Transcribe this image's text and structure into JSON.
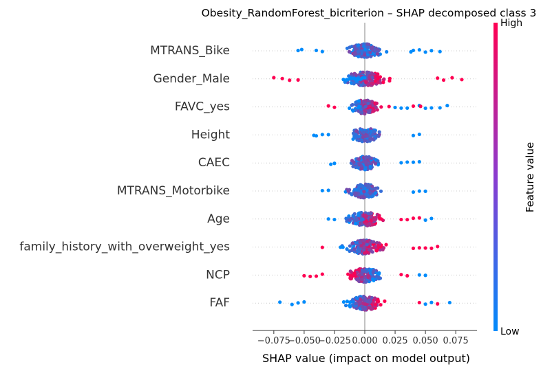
{
  "chart_data": {
    "type": "scatter",
    "title": "Obesity_RandomForest_bicriterion – SHAP decomposed class 3",
    "xlabel": "SHAP value (impact on model output)",
    "ylabel": "",
    "xlim": [
      -0.0925,
      0.0925
    ],
    "x_ticks": [
      -0.075,
      -0.05,
      -0.025,
      0.0,
      0.025,
      0.05,
      0.075
    ],
    "x_tick_labels": [
      "−0.075",
      "−0.050",
      "−0.025",
      "0.000",
      "0.025",
      "0.050",
      "0.075"
    ],
    "features": [
      "MTRANS_Bike",
      "Gender_Male",
      "FAVC_yes",
      "Height",
      "CAEC",
      "MTRANS_Motorbike",
      "Age",
      "family_history_with_overweight_yes",
      "NCP",
      "FAF"
    ],
    "colorbar": {
      "label": "Feature value",
      "high": "High",
      "low": "Low",
      "high_color": "#ff0052",
      "low_color": "#008bfb"
    },
    "series": [
      {
        "feature": "MTRANS_Bike",
        "spread": 0.048,
        "low_points": [
          [
            -0.055,
            0
          ],
          [
            -0.052,
            0
          ],
          [
            -0.04,
            0
          ],
          [
            -0.035,
            0
          ],
          [
            0.038,
            0
          ],
          [
            0.04,
            0
          ],
          [
            0.045,
            0
          ],
          [
            0.05,
            0
          ],
          [
            0.055,
            0
          ],
          [
            0.062,
            0
          ]
        ],
        "high_points": []
      },
      {
        "feature": "Gender_Male",
        "spread": 0.055,
        "low_points": [
          [
            -0.012,
            0
          ],
          [
            -0.008,
            0
          ],
          [
            -0.005,
            0
          ],
          [
            -0.002,
            0
          ],
          [
            0.0,
            0
          ],
          [
            -0.01,
            0
          ],
          [
            -0.006,
            0
          ],
          [
            -0.015,
            0
          ],
          [
            -0.014,
            0
          ],
          [
            -0.003,
            0
          ]
        ],
        "high_points": [
          [
            -0.075,
            0
          ],
          [
            -0.068,
            0
          ],
          [
            -0.062,
            0
          ],
          [
            -0.055,
            0
          ],
          [
            0.06,
            0
          ],
          [
            0.065,
            0
          ],
          [
            0.072,
            0
          ],
          [
            0.08,
            0
          ]
        ]
      },
      {
        "feature": "FAVC_yes",
        "spread": 0.04,
        "low_points": [
          [
            0.025,
            0
          ],
          [
            0.03,
            0
          ],
          [
            0.035,
            0
          ],
          [
            0.045,
            0
          ],
          [
            0.05,
            0
          ],
          [
            0.055,
            0
          ],
          [
            0.062,
            0
          ],
          [
            0.068,
            0
          ]
        ],
        "high_points": [
          [
            -0.03,
            0
          ],
          [
            -0.025,
            0
          ],
          [
            0.02,
            0
          ],
          [
            0.04,
            0
          ],
          [
            0.046,
            0
          ]
        ]
      },
      {
        "feature": "Height",
        "spread": 0.04,
        "low_points": [
          [
            -0.042,
            0
          ],
          [
            -0.04,
            0
          ],
          [
            -0.035,
            0
          ],
          [
            -0.03,
            0
          ],
          [
            0.04,
            0
          ],
          [
            0.045,
            0
          ]
        ],
        "high_points": []
      },
      {
        "feature": "CAEC",
        "spread": 0.035,
        "low_points": [
          [
            -0.028,
            0
          ],
          [
            -0.025,
            0
          ],
          [
            0.03,
            0
          ],
          [
            0.035,
            0
          ],
          [
            0.04,
            0
          ],
          [
            0.045,
            0
          ]
        ],
        "high_points": []
      },
      {
        "feature": "MTRANS_Motorbike",
        "spread": 0.04,
        "low_points": [
          [
            -0.035,
            0
          ],
          [
            -0.03,
            0
          ],
          [
            0.04,
            0
          ],
          [
            0.045,
            0
          ],
          [
            0.05,
            0
          ]
        ],
        "high_points": []
      },
      {
        "feature": "Age",
        "spread": 0.045,
        "low_points": [
          [
            -0.03,
            0
          ],
          [
            -0.025,
            0
          ],
          [
            0.05,
            0
          ],
          [
            0.055,
            0
          ]
        ],
        "high_points": [
          [
            0.03,
            0
          ],
          [
            0.035,
            0
          ],
          [
            0.04,
            0
          ],
          [
            0.045,
            0
          ]
        ]
      },
      {
        "feature": "family_history_with_overweight_yes",
        "spread": 0.05,
        "low_points": [
          [
            -0.02,
            0
          ],
          [
            -0.018,
            0
          ]
        ],
        "high_points": [
          [
            -0.035,
            0
          ],
          [
            0.04,
            0
          ],
          [
            0.045,
            0
          ],
          [
            0.05,
            0
          ],
          [
            0.055,
            0
          ],
          [
            0.06,
            0
          ]
        ]
      },
      {
        "feature": "NCP",
        "spread": 0.045,
        "low_points": [
          [
            0.045,
            0
          ],
          [
            0.05,
            0
          ]
        ],
        "high_points": [
          [
            -0.05,
            0
          ],
          [
            -0.045,
            0
          ],
          [
            -0.04,
            0
          ],
          [
            -0.035,
            0
          ],
          [
            0.03,
            0
          ],
          [
            0.035,
            0
          ]
        ]
      },
      {
        "feature": "FAF",
        "spread": 0.045,
        "low_points": [
          [
            -0.07,
            0
          ],
          [
            -0.06,
            0
          ],
          [
            -0.055,
            0
          ],
          [
            -0.05,
            0
          ],
          [
            0.05,
            0
          ],
          [
            0.055,
            0
          ],
          [
            0.07,
            0
          ]
        ],
        "high_points": [
          [
            0.045,
            0
          ],
          [
            0.06,
            0
          ]
        ]
      }
    ]
  }
}
